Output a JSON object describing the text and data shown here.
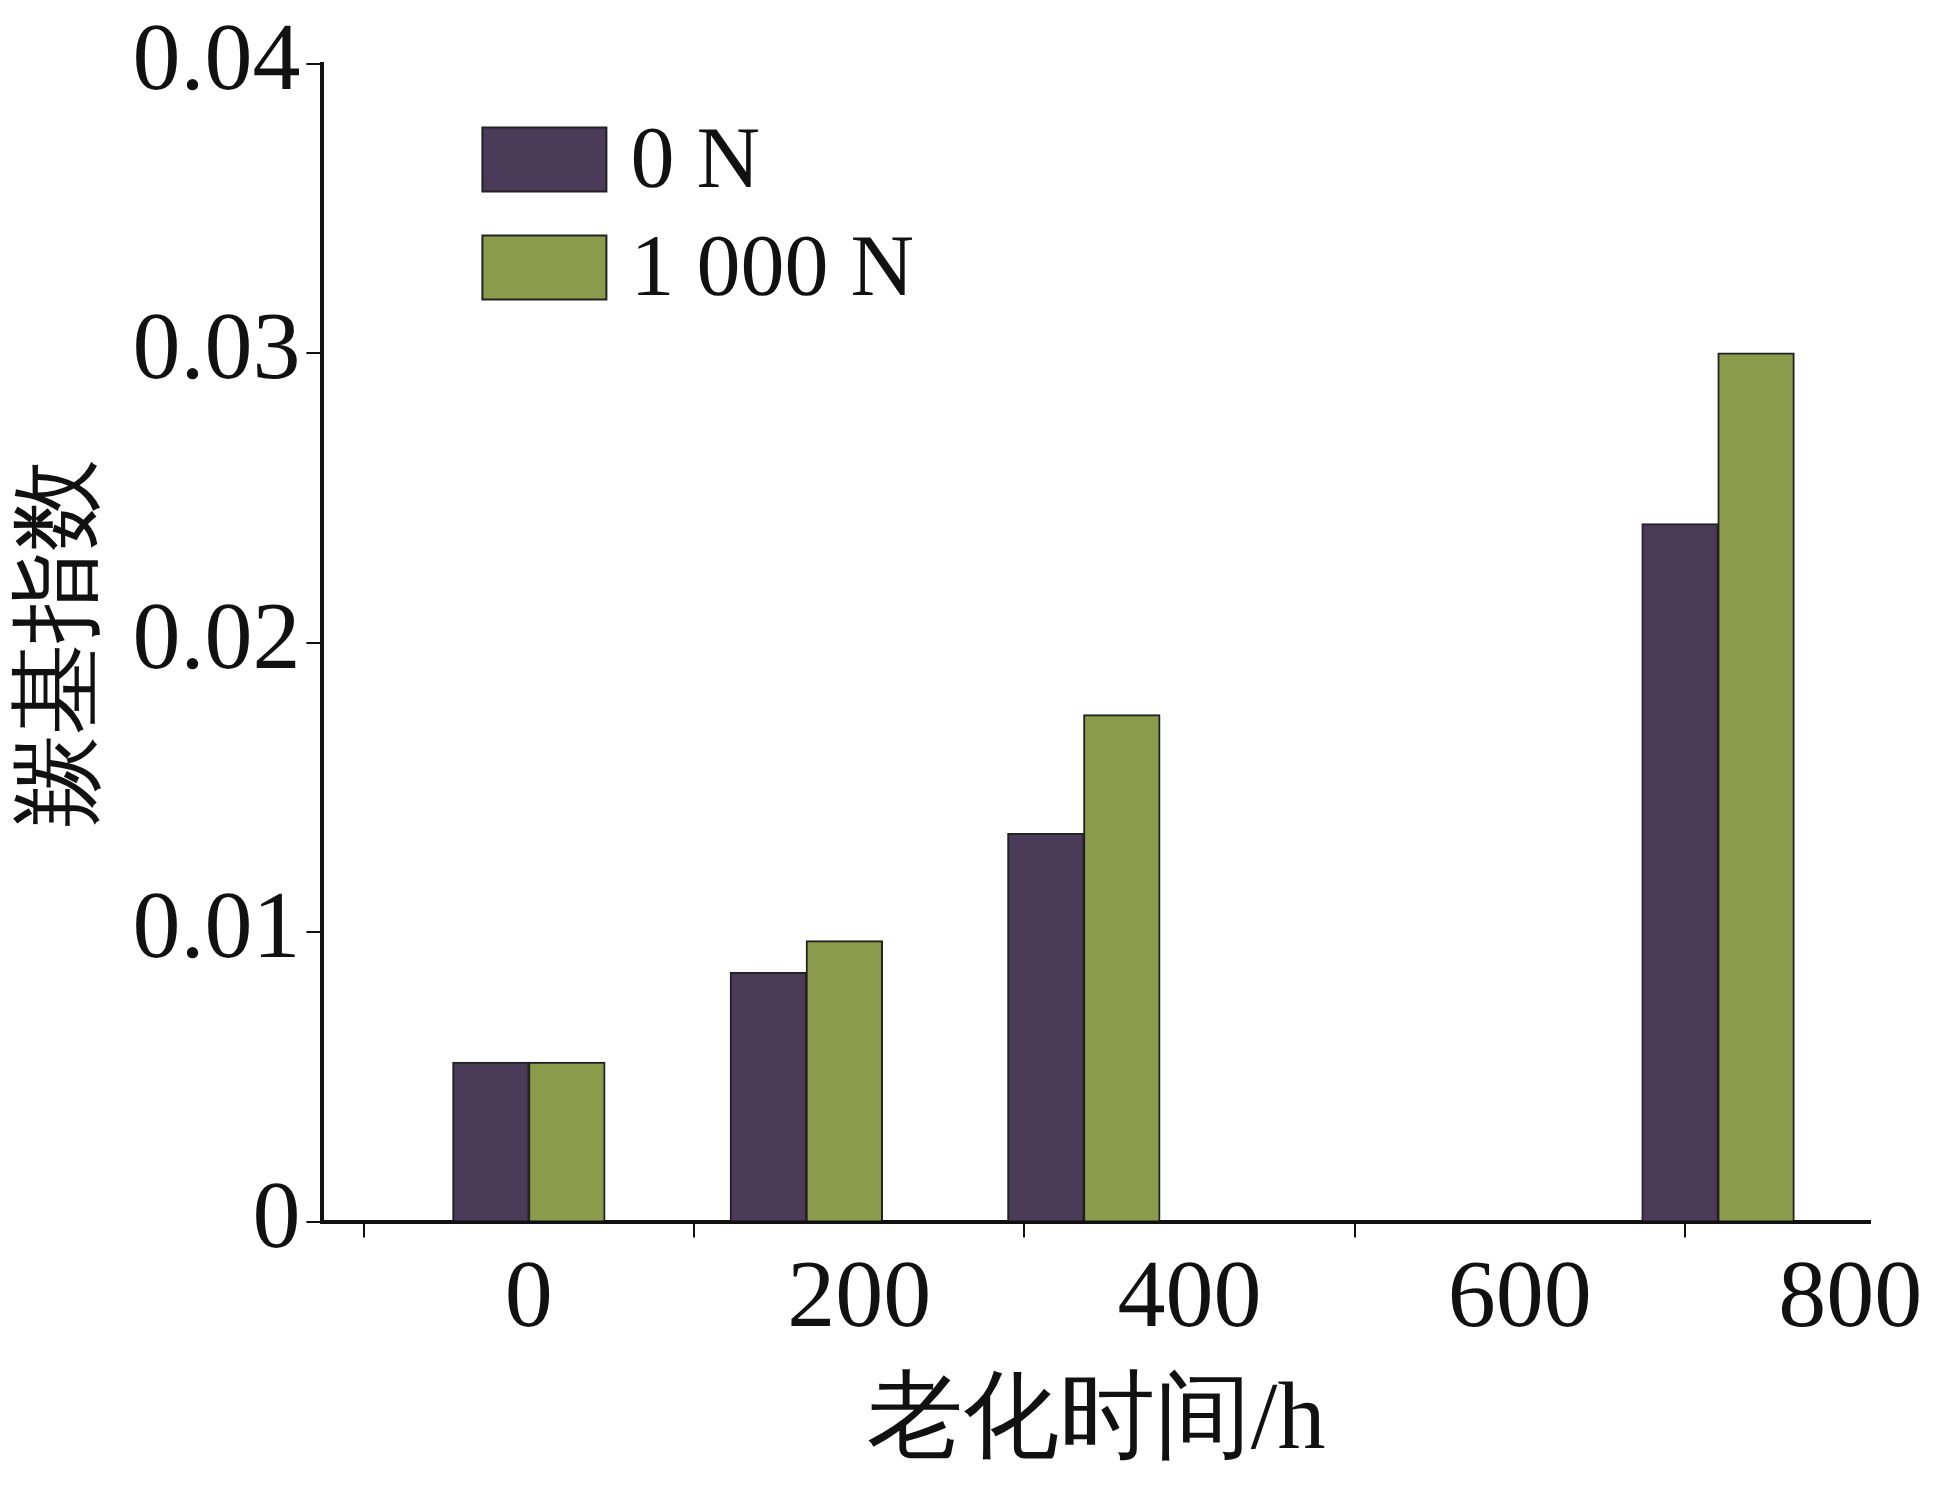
{
  "chart_data": {
    "type": "bar",
    "xlabel": "老化时间/h",
    "ylabel": "羰基指数",
    "x": [
      0,
      168,
      336,
      720
    ],
    "series": [
      {
        "name": "0 N",
        "color": "#4a3b58",
        "values": [
          0.0055,
          0.0086,
          0.0134,
          0.0241
        ]
      },
      {
        "name": "1 000 N",
        "color": "#8c9a4c",
        "values": [
          0.0055,
          0.0097,
          0.0175,
          0.03
        ]
      }
    ],
    "xlim": [
      -125,
      812
    ],
    "xticks": [
      0,
      200,
      400,
      600,
      800
    ],
    "ylim": [
      0,
      0.04
    ],
    "yticks": [
      0,
      0.01,
      0.02,
      0.03,
      0.04
    ],
    "legend": "top left"
  }
}
